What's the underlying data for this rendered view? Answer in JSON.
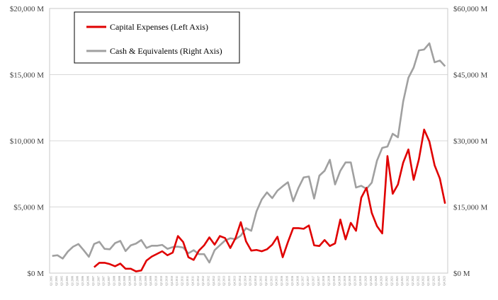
{
  "chart_data": {
    "type": "line",
    "title": "",
    "xlabel": "",
    "left_axis": {
      "ylim": [
        0,
        20000
      ],
      "ticks": [
        0,
        5000,
        10000,
        15000,
        20000
      ],
      "tick_labels": [
        "$0 M",
        "$5,000 M",
        "$10,000 M",
        "$15,000 M",
        "$20,000 M"
      ]
    },
    "right_axis": {
      "ylim": [
        0,
        60000
      ],
      "ticks": [
        0,
        15000,
        30000,
        45000,
        60000
      ],
      "tick_labels": [
        "$0 M",
        "$15,000 M",
        "$30,000 M",
        "$45,000 M",
        "$60,000 M"
      ]
    },
    "grid": "horizontal",
    "legend": {
      "position": "top-left"
    },
    "x": [
      "Q1 2005",
      "Q2 2005",
      "Q3 2005",
      "Q4 2005",
      "Q1 2006",
      "Q2 2006",
      "Q3 2006",
      "Q4 2006",
      "Q1 2007",
      "Q2 2007",
      "Q3 2007",
      "Q4 2007",
      "Q1 2008",
      "Q2 2008",
      "Q3 2008",
      "Q4 2008",
      "Q1 2009",
      "Q2 2009",
      "Q3 2009",
      "Q4 2009",
      "Q1 2010",
      "Q2 2010",
      "Q3 2010",
      "Q4 2010",
      "Q1 2011",
      "Q2 2011",
      "Q3 2011",
      "Q4 2011",
      "Q1 2012",
      "Q2 2012",
      "Q3 2012",
      "Q4 2012",
      "Q1 2013",
      "Q2 2013",
      "Q3 2013",
      "Q4 2013",
      "Q1 2014",
      "Q2 2014",
      "Q3 2014",
      "Q4 2014",
      "Q1 2015",
      "Q2 2015",
      "Q3 2015",
      "Q4 2015",
      "Q1 2016",
      "Q2 2016",
      "Q3 2016",
      "Q4 2016",
      "Q1 2017",
      "Q2 2017",
      "Q3 2017",
      "Q4 2017",
      "Q1 2018",
      "Q2 2018",
      "Q3 2018",
      "Q4 2018",
      "Q1 2019",
      "Q2 2019",
      "Q3 2019",
      "Q4 2019",
      "Q1 2020",
      "Q2 2020",
      "Q3 2020",
      "Q4 2020",
      "Q1 2021",
      "Q2 2021",
      "Q3 2021",
      "Q4 2021",
      "Q1 2022",
      "Q2 2022",
      "Q3 2022",
      "Q4 2022",
      "Q1 2023",
      "Q2 2023",
      "Q3 2023",
      "Q4 2023"
    ],
    "series": [
      {
        "name": "Capital Expenses (Left Axis)",
        "axis": "left",
        "color": "#e00000",
        "values": [
          null,
          null,
          null,
          null,
          null,
          null,
          null,
          null,
          450,
          780,
          780,
          680,
          520,
          720,
          330,
          330,
          130,
          200,
          950,
          1250,
          1450,
          1650,
          1350,
          1550,
          2800,
          2350,
          1200,
          1000,
          1700,
          2100,
          2700,
          2150,
          2800,
          2650,
          1900,
          2650,
          3850,
          2400,
          1700,
          1750,
          1650,
          1800,
          2150,
          2750,
          1200,
          2350,
          3400,
          3400,
          3350,
          3600,
          2100,
          2050,
          2500,
          2050,
          2250,
          4050,
          2550,
          3800,
          3200,
          5700,
          6450,
          4550,
          3550,
          3000,
          8850,
          6000,
          6700,
          8350,
          9350,
          7050,
          8600,
          10850,
          9950,
          8150,
          7150,
          5250
        ]
      },
      {
        "name": "Cash & Equivalents (Right Axis)",
        "axis": "right",
        "color": "#a0a0a0",
        "values": [
          3900,
          4050,
          3300,
          4900,
          6000,
          6600,
          5200,
          3700,
          6600,
          7100,
          5500,
          5400,
          6800,
          7300,
          5000,
          6300,
          6700,
          7500,
          5700,
          6200,
          6200,
          6400,
          5500,
          5900,
          6000,
          5800,
          4500,
          5200,
          4300,
          4300,
          2400,
          5200,
          6300,
          7400,
          7900,
          7700,
          8500,
          10200,
          9600,
          14000,
          16700,
          18300,
          17000,
          18700,
          19700,
          20600,
          16300,
          19300,
          21700,
          21900,
          16900,
          22100,
          23200,
          25700,
          20100,
          23200,
          25100,
          25100,
          19400,
          19800,
          19100,
          20500,
          25500,
          28400,
          28700,
          31600,
          30800,
          38900,
          44300,
          46600,
          50500,
          50700,
          52100,
          47800,
          48200,
          46900
        ]
      }
    ]
  }
}
